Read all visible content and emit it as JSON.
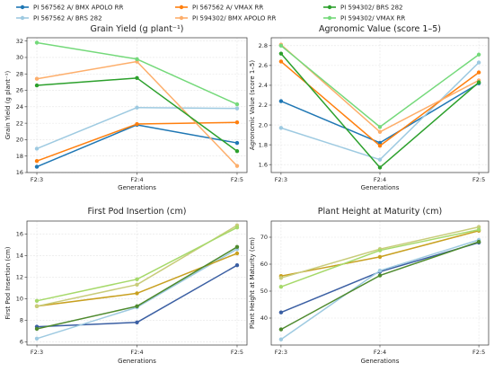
{
  "legend": {
    "entries": [
      {
        "label": "PI 567562 A/ BMX APOLO RR",
        "color": "#1f77b4"
      },
      {
        "label": "PI 567562 A/ BRS 282",
        "color": "#9ecae1"
      },
      {
        "label": "PI 567562 A/ VMAX RR",
        "color": "#ff7f0e"
      },
      {
        "label": "PI 594302/ BMX APOLO RR",
        "color": "#fdae6b"
      },
      {
        "label": "PI 594302/ BRS 282",
        "color": "#2ca02c"
      },
      {
        "label": "PI 594302/ VMAX RR",
        "color": "#74d97a"
      }
    ],
    "placement": "top-center"
  },
  "chart_data": [
    {
      "type": "line",
      "title": "Grain Yield (g plant⁻¹)",
      "xlabel": "Generations",
      "ylabel": "Grain Yield (g plant⁻¹)",
      "categories": [
        "F2:3",
        "F2:4",
        "F2:5"
      ],
      "yticks": [
        16,
        18,
        20,
        22,
        24,
        26,
        28,
        30,
        32
      ],
      "ytick_labels": [
        "16",
        "18",
        "20",
        "22",
        "24",
        "26",
        "28",
        "30",
        "32"
      ],
      "ylim": [
        16,
        32.4
      ],
      "grid": true,
      "series": [
        {
          "name": "PI 567562 A/ BMX APOLO RR",
          "values": [
            16.7,
            21.8,
            19.6
          ],
          "color": "#1f77b4"
        },
        {
          "name": "PI 567562 A/ BRS 282",
          "values": [
            18.9,
            23.9,
            23.8
          ],
          "color": "#9ecae1"
        },
        {
          "name": "PI 567562 A/ VMAX RR",
          "values": [
            17.4,
            21.9,
            22.1
          ],
          "color": "#ff7f0e"
        },
        {
          "name": "PI 594302/ BMX APOLO RR",
          "values": [
            27.4,
            29.5,
            16.8
          ],
          "color": "#fdae6b"
        },
        {
          "name": "PI 594302/ BRS 282",
          "values": [
            26.6,
            27.5,
            18.6
          ],
          "color": "#2ca02c"
        },
        {
          "name": "PI 594302/ VMAX RR",
          "values": [
            31.8,
            29.8,
            24.3
          ],
          "color": "#74d97a"
        }
      ]
    },
    {
      "type": "line",
      "title": "Agronomic Value (score 1–5)",
      "xlabel": "Generations",
      "ylabel": "Agronomic Value (score 1–5)",
      "categories": [
        "F2:3",
        "F2:4",
        "F2:5"
      ],
      "yticks": [
        1.6,
        1.8,
        2.0,
        2.2,
        2.4,
        2.6,
        2.8
      ],
      "ytick_labels": [
        "1.6",
        "1.8",
        "2.0",
        "2.2",
        "2.4",
        "2.6",
        "2.8"
      ],
      "ylim": [
        1.52,
        2.88
      ],
      "grid": true,
      "series": [
        {
          "name": "PI 567562 A/ BMX APOLO RR",
          "values": [
            2.24,
            1.82,
            2.42
          ],
          "color": "#1f77b4"
        },
        {
          "name": "PI 567562 A/ BRS 282",
          "values": [
            1.97,
            1.65,
            2.63
          ],
          "color": "#9ecae1"
        },
        {
          "name": "PI 567562 A/ VMAX RR",
          "values": [
            2.64,
            1.79,
            2.53
          ],
          "color": "#ff7f0e"
        },
        {
          "name": "PI 594302/ BMX APOLO RR",
          "values": [
            2.81,
            1.93,
            2.45
          ],
          "color": "#fdae6b"
        },
        {
          "name": "PI 594302/ BRS 282",
          "values": [
            2.72,
            1.57,
            2.43
          ],
          "color": "#2ca02c"
        },
        {
          "name": "PI 594302/ VMAX RR",
          "values": [
            2.8,
            1.98,
            2.71
          ],
          "color": "#74d97a"
        }
      ]
    },
    {
      "type": "line",
      "title": "First Pod Insertion (cm)",
      "xlabel": "Generations",
      "ylabel": "First Pod Insertion (cm)",
      "categories": [
        "F2:3",
        "F2:4",
        "F2:5"
      ],
      "yticks": [
        6,
        8,
        10,
        12,
        14,
        16
      ],
      "ytick_labels": [
        "6",
        "8",
        "10",
        "12",
        "14",
        "16"
      ],
      "ylim": [
        5.7,
        17.2
      ],
      "grid": true,
      "series": [
        {
          "name": "PI 567562 A/ BMX APOLO RR",
          "values": [
            7.4,
            7.8,
            13.1
          ],
          "color": "#3b5fa3"
        },
        {
          "name": "PI 567562 A/ BRS 282",
          "values": [
            6.3,
            9.2,
            14.6
          ],
          "color": "#9ecae1"
        },
        {
          "name": "PI 567562 A/ VMAX RR",
          "values": [
            9.3,
            10.5,
            14.2
          ],
          "color": "#c8a020"
        },
        {
          "name": "PI 594302/ BMX APOLO RR",
          "values": [
            9.3,
            11.3,
            16.8
          ],
          "color": "#c8cc7a"
        },
        {
          "name": "PI 594302/ BRS 282",
          "values": [
            7.2,
            9.3,
            14.8
          ],
          "color": "#4e8a2e"
        },
        {
          "name": "PI 594302/ VMAX RR",
          "values": [
            9.8,
            11.8,
            16.6
          ],
          "color": "#a6d96a"
        }
      ]
    },
    {
      "type": "line",
      "title": "Plant Height at Maturity (cm)",
      "xlabel": "Generations",
      "ylabel": "Plant Height at Maturity (cm)",
      "categories": [
        "F2:3",
        "F2:4",
        "F2:5"
      ],
      "yticks": [
        40,
        50,
        60,
        70
      ],
      "ytick_labels": [
        "40",
        "50",
        "60",
        "70"
      ],
      "ylim": [
        30,
        76
      ],
      "grid": true,
      "series": [
        {
          "name": "PI 567562 A/ BMX APOLO RR",
          "values": [
            42.1,
            57.2,
            68.0
          ],
          "color": "#3b5fa3"
        },
        {
          "name": "PI 567562 A/ BRS 282",
          "values": [
            32.1,
            57.6,
            69.0
          ],
          "color": "#9ecae1"
        },
        {
          "name": "PI 567562 A/ VMAX RR",
          "values": [
            55.6,
            62.7,
            72.4
          ],
          "color": "#c8a020"
        },
        {
          "name": "PI 594302/ BMX APOLO RR",
          "values": [
            54.9,
            65.6,
            73.8
          ],
          "color": "#c8cc7a"
        },
        {
          "name": "PI 594302/ BRS 282",
          "values": [
            35.8,
            55.8,
            68.3
          ],
          "color": "#4e8a2e"
        },
        {
          "name": "PI 594302/ VMAX RR",
          "values": [
            51.6,
            65.1,
            72.8
          ],
          "color": "#a6d96a"
        }
      ]
    }
  ]
}
